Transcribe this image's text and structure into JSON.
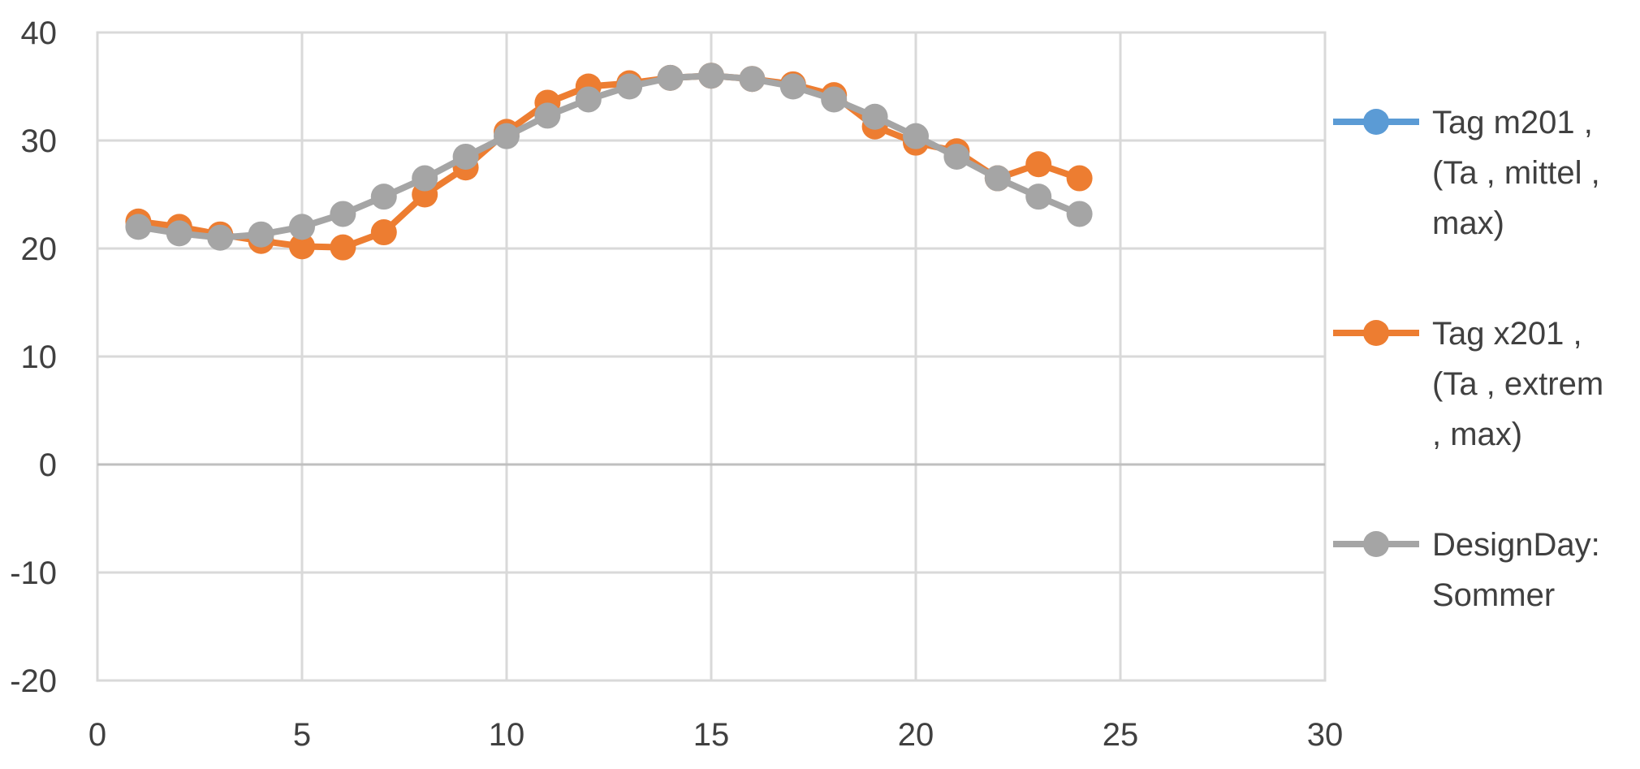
{
  "chart_data": {
    "type": "scatter",
    "title": "",
    "xlabel": "",
    "ylabel": "",
    "xlim": [
      0,
      30
    ],
    "ylim": [
      -20,
      40
    ],
    "x_ticks": [
      "0",
      "5",
      "10",
      "15",
      "20",
      "25",
      "30"
    ],
    "y_ticks": [
      "40",
      "30",
      "20",
      "10",
      "0",
      "-10",
      "-20"
    ],
    "grid": true,
    "legend_position": "right",
    "x": [
      1,
      2,
      3,
      4,
      5,
      6,
      7,
      8,
      9,
      10,
      11,
      12,
      13,
      14,
      15,
      16,
      17,
      18,
      19,
      20,
      21,
      22,
      23,
      24
    ],
    "series": [
      {
        "name": "Tag m201 , (Ta , mittel , max)",
        "legend_lines": [
          "Tag m201 ,",
          "(Ta , mittel ,",
          "max)"
        ],
        "color": "#5B9BD5",
        "values": []
      },
      {
        "name": "Tag x201 , (Ta , extrem , max)",
        "legend_lines": [
          "Tag x201 ,",
          "(Ta , extrem",
          ", max)"
        ],
        "color": "#ED7D31",
        "values": [
          22.5,
          22.0,
          21.3,
          20.7,
          20.2,
          20.1,
          21.5,
          25.0,
          27.5,
          30.8,
          33.5,
          35.0,
          35.3,
          35.8,
          36.0,
          35.7,
          35.2,
          34.2,
          31.3,
          29.8,
          29.0,
          26.5,
          27.8,
          26.5
        ]
      },
      {
        "name": "DesignDay: Sommer",
        "legend_lines": [
          "DesignDay:",
          "Sommer"
        ],
        "color": "#A5A5A5",
        "values": [
          22.0,
          21.4,
          21.0,
          21.3,
          22.0,
          23.2,
          24.8,
          26.5,
          28.5,
          30.4,
          32.3,
          33.8,
          35.0,
          35.8,
          36.0,
          35.7,
          35.0,
          33.8,
          32.2,
          30.4,
          28.5,
          26.5,
          24.8,
          23.2
        ]
      }
    ]
  }
}
